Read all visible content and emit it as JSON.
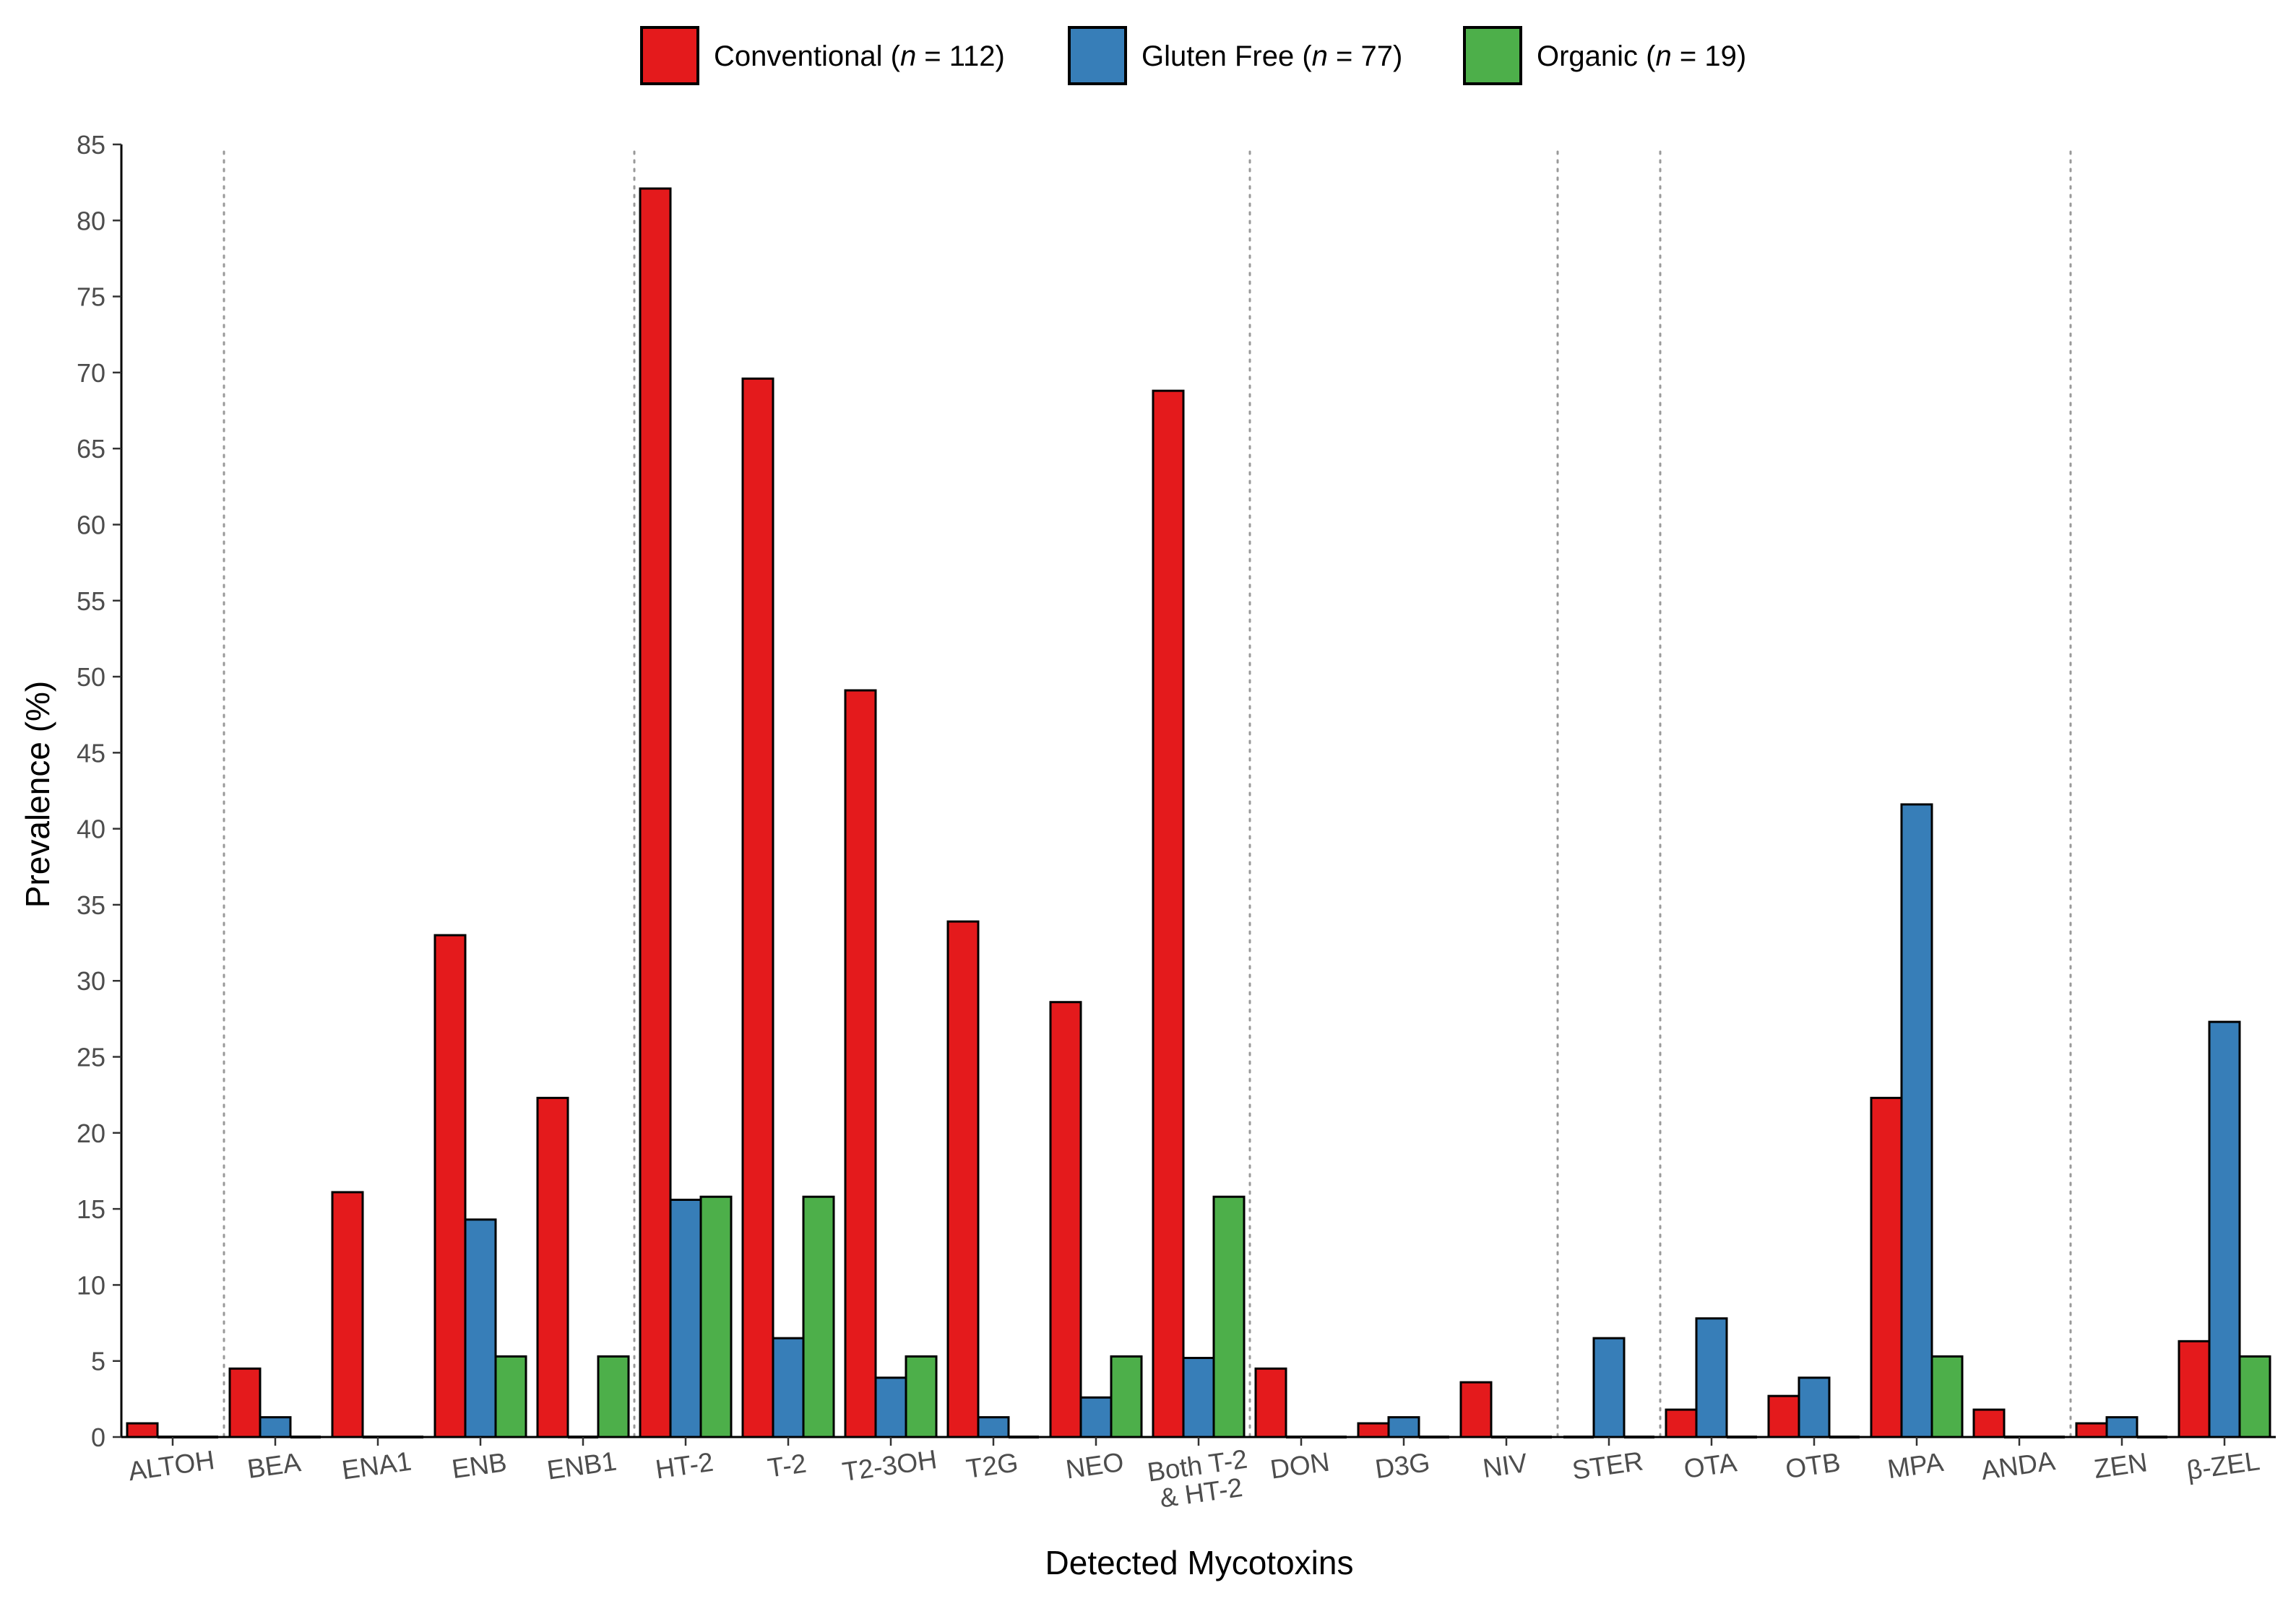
{
  "chart_data": {
    "type": "bar",
    "title": "",
    "xlabel": "Detected Mycotoxins",
    "ylabel": "Prevalence (%)",
    "ylim": [
      0,
      85
    ],
    "yticks": [
      0,
      5,
      10,
      15,
      20,
      25,
      30,
      35,
      40,
      45,
      50,
      55,
      60,
      65,
      70,
      75,
      80,
      85
    ],
    "grid": false,
    "legend_position": "top",
    "categories": [
      "ALTOH",
      "BEA",
      "ENA1",
      "ENB",
      "ENB1",
      "HT-2",
      "T-2",
      "T2-3OH",
      "T2G",
      "NEO",
      "Both T-2\n& HT-2",
      "DON",
      "D3G",
      "NIV",
      "STER",
      "OTA",
      "OTB",
      "MPA",
      "ANDA",
      "ZEN",
      "β-ZEL"
    ],
    "group_separators_after": [
      "ALTOH",
      "ENB1",
      "Both T-2\n& HT-2",
      "NIV",
      "STER",
      "ANDA"
    ],
    "series": [
      {
        "name": "Conventional",
        "n": "112",
        "color": "#E41A1C",
        "values": [
          0.9,
          4.5,
          16.1,
          33.0,
          22.3,
          82.1,
          69.6,
          49.1,
          33.9,
          28.6,
          68.8,
          4.5,
          0.9,
          3.6,
          0,
          1.8,
          2.7,
          22.3,
          1.8,
          0.9,
          6.3
        ]
      },
      {
        "name": "Gluten Free",
        "n": "77",
        "color": "#377EB8",
        "values": [
          0,
          1.3,
          0,
          14.3,
          0,
          15.6,
          6.5,
          3.9,
          1.3,
          2.6,
          5.2,
          0,
          1.3,
          0,
          6.5,
          7.8,
          3.9,
          41.6,
          0,
          1.3,
          27.3
        ]
      },
      {
        "name": "Organic",
        "n": "19",
        "color": "#4DAF4A",
        "values": [
          0,
          0,
          0,
          5.3,
          5.3,
          15.8,
          15.8,
          5.3,
          0,
          5.3,
          15.8,
          0,
          0,
          0,
          0,
          0,
          0,
          5.3,
          0,
          0,
          5.3
        ]
      }
    ]
  }
}
